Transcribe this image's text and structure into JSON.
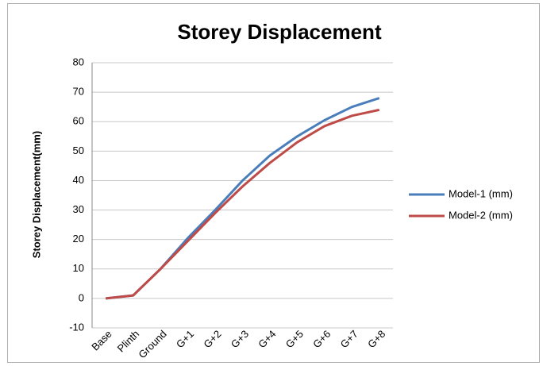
{
  "chart_data": {
    "type": "line",
    "title": "Storey Displacement",
    "y_label": "Storey Displacement(mm)",
    "categories": [
      "Base",
      "Plinth",
      "Ground",
      "G+1",
      "G+2",
      "G+3",
      "G+4",
      "G+5",
      "G+6",
      "G+7",
      "G+8"
    ],
    "series": [
      {
        "name": "Model-1 (mm)",
        "color": "#4a7ebb",
        "values": [
          0,
          1,
          10,
          20.5,
          30,
          40,
          48.5,
          55,
          60.5,
          65,
          68
        ]
      },
      {
        "name": "Model-2 (mm)",
        "color": "#be4b48",
        "values": [
          0,
          1,
          10,
          19.5,
          29,
          38,
          46,
          53,
          58.5,
          62,
          64
        ]
      }
    ],
    "ylim": [
      -10,
      80
    ],
    "yticks": [
      -10,
      0,
      10,
      20,
      30,
      40,
      50,
      60,
      70,
      80
    ],
    "grid": true,
    "legend": "right"
  }
}
